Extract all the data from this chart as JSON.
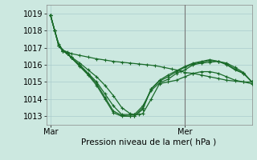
{
  "background_color": "#cce8e0",
  "grid_color": "#aacccc",
  "line_color": "#1a6b2a",
  "xlabel": "Pression niveau de la mer( hPa )",
  "yticks": [
    1013,
    1014,
    1015,
    1016,
    1017,
    1018,
    1019
  ],
  "xtick_labels": [
    "Mar",
    "Mer"
  ],
  "xtick_pos": [
    0,
    64
  ],
  "vline_x": 64,
  "xlim": [
    -2,
    96
  ],
  "ylim": [
    1012.5,
    1019.5
  ],
  "series": [
    [
      0,
      1018.9,
      2,
      1018.0,
      4,
      1017.1,
      6,
      1016.85,
      8,
      1016.75,
      10,
      1016.65,
      14,
      1016.55,
      18,
      1016.45,
      22,
      1016.35,
      26,
      1016.28,
      30,
      1016.2,
      34,
      1016.15,
      38,
      1016.1,
      42,
      1016.05,
      46,
      1016.0,
      50,
      1015.95,
      54,
      1015.85,
      58,
      1015.75,
      62,
      1015.65,
      64,
      1015.55,
      68,
      1015.5,
      72,
      1015.4,
      76,
      1015.3,
      80,
      1015.2,
      84,
      1015.1,
      88,
      1015.05,
      92,
      1015.0,
      96,
      1015.0
    ],
    [
      0,
      1018.9,
      2,
      1018.0,
      4,
      1017.2,
      6,
      1016.85,
      8,
      1016.7,
      10,
      1016.45,
      14,
      1016.1,
      18,
      1015.7,
      22,
      1015.3,
      26,
      1014.8,
      30,
      1014.2,
      34,
      1013.5,
      38,
      1013.15,
      40,
      1013.1,
      42,
      1013.1,
      44,
      1013.15,
      48,
      1014.0,
      52,
      1014.9,
      56,
      1015.0,
      60,
      1015.1,
      64,
      1015.3,
      68,
      1015.5,
      72,
      1015.6,
      76,
      1015.6,
      80,
      1015.5,
      84,
      1015.3,
      88,
      1015.1,
      92,
      1015.0,
      96,
      1014.9
    ],
    [
      0,
      1018.9,
      2,
      1018.0,
      4,
      1017.1,
      6,
      1016.8,
      8,
      1016.65,
      10,
      1016.4,
      14,
      1016.0,
      18,
      1015.5,
      22,
      1015.0,
      26,
      1014.3,
      30,
      1013.6,
      34,
      1013.1,
      38,
      1013.1,
      40,
      1013.1,
      44,
      1013.6,
      48,
      1014.5,
      52,
      1014.95,
      56,
      1015.15,
      60,
      1015.5,
      64,
      1015.7,
      68,
      1016.0,
      72,
      1016.1,
      76,
      1016.15,
      80,
      1016.2,
      84,
      1016.1,
      88,
      1015.85,
      92,
      1015.55,
      96,
      1015.0
    ],
    [
      0,
      1018.9,
      2,
      1018.0,
      4,
      1017.1,
      6,
      1016.8,
      8,
      1016.65,
      10,
      1016.4,
      14,
      1015.95,
      18,
      1015.45,
      22,
      1014.9,
      26,
      1014.1,
      30,
      1013.3,
      34,
      1013.05,
      38,
      1013.0,
      40,
      1013.0,
      44,
      1013.5,
      48,
      1014.6,
      52,
      1015.05,
      56,
      1015.3,
      60,
      1015.6,
      64,
      1015.85,
      68,
      1016.05,
      72,
      1016.15,
      76,
      1016.25,
      80,
      1016.2,
      84,
      1016.05,
      88,
      1015.75,
      92,
      1015.5,
      96,
      1015.0
    ],
    [
      0,
      1018.9,
      2,
      1018.0,
      4,
      1017.1,
      6,
      1016.8,
      8,
      1016.65,
      10,
      1016.4,
      14,
      1015.9,
      18,
      1015.4,
      22,
      1014.8,
      26,
      1014.0,
      30,
      1013.2,
      34,
      1013.0,
      38,
      1013.0,
      40,
      1013.0,
      44,
      1013.4,
      48,
      1014.6,
      52,
      1015.1,
      56,
      1015.4,
      60,
      1015.65,
      64,
      1015.9,
      68,
      1016.1,
      72,
      1016.2,
      76,
      1016.3,
      80,
      1016.2,
      84,
      1016.0,
      88,
      1015.7,
      92,
      1015.5,
      96,
      1015.0
    ]
  ]
}
